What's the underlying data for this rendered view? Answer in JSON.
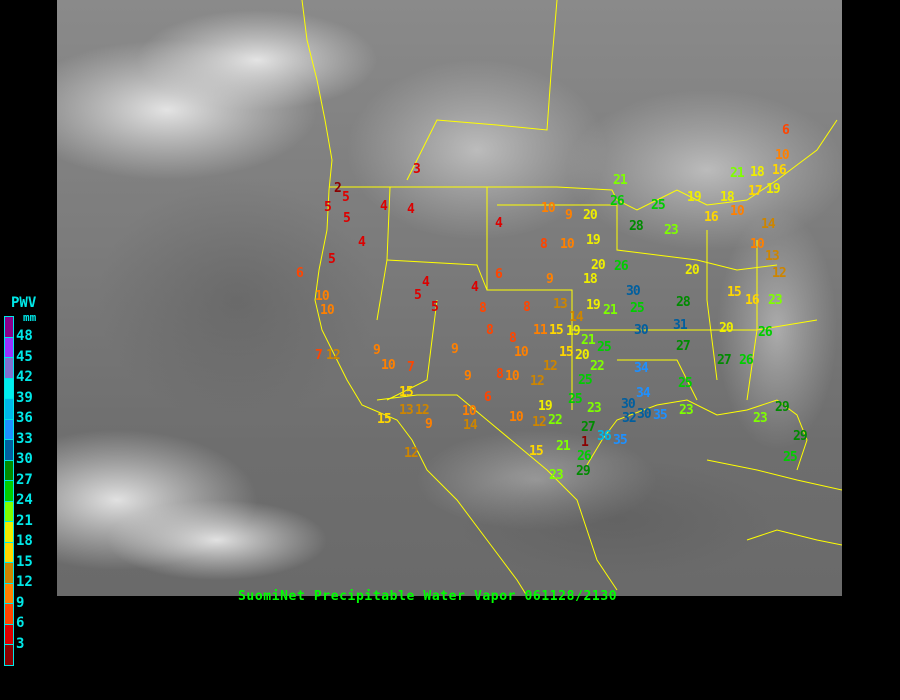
{
  "caption": "SuomiNet Precipitable Water Vapor 061128/2130",
  "legend": {
    "title": "PWV",
    "unit": "mm",
    "labels": [
      "48",
      "45",
      "42",
      "39",
      "36",
      "33",
      "30",
      "27",
      "24",
      "21",
      "18",
      "15",
      "12",
      "9",
      "6",
      "3"
    ],
    "colors": [
      "#8b008b",
      "#9933ff",
      "#8070d0",
      "#00eeee",
      "#00b8e8",
      "#1e90ff",
      "#005f9f",
      "#008b00",
      "#00cd00",
      "#7fff00",
      "#eeee00",
      "#ffd700",
      "#cd8500",
      "#ff8000",
      "#ff4500",
      "#dd0000",
      "#8b0000"
    ]
  },
  "boundary_color": "#ffff00",
  "stations": [
    3,
    2,
    5,
    5,
    5,
    4,
    4,
    4,
    5,
    6,
    10,
    10,
    4,
    5,
    5,
    4,
    6,
    4,
    10,
    9,
    20,
    8,
    10,
    19,
    21,
    26,
    25,
    28,
    23,
    19,
    18,
    16,
    10,
    21,
    18,
    17,
    19,
    6,
    10,
    16,
    14,
    10,
    13,
    12,
    20,
    15,
    16,
    23,
    28,
    31,
    20,
    26,
    27,
    27,
    26,
    25,
    30,
    25,
    30,
    20,
    18,
    26,
    19,
    21,
    9,
    13,
    14,
    8,
    8,
    8,
    9,
    10,
    10,
    7,
    9,
    12,
    7,
    15,
    13,
    12,
    15,
    9,
    10,
    14,
    9,
    6,
    8,
    10,
    12,
    19,
    10,
    12,
    22,
    25,
    23,
    27,
    21,
    1,
    26,
    29,
    23,
    15,
    12,
    36,
    35,
    34,
    34,
    30,
    32,
    30,
    35,
    23,
    23,
    29,
    29,
    25,
    12,
    15,
    20,
    22,
    25,
    11,
    15,
    19,
    21,
    25,
    8
  ]
}
